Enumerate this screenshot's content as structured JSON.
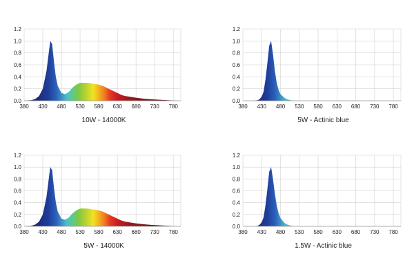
{
  "chart_data": [
    {
      "type": "area",
      "title": "10W - 14000K",
      "xlabel": "",
      "ylabel": "",
      "xlim": [
        380,
        800
      ],
      "ylim": [
        0,
        1.2
      ],
      "x_ticks": [
        "380",
        "430",
        "480",
        "530",
        "580",
        "630",
        "680",
        "730",
        "780"
      ],
      "y_ticks": [
        "0.0",
        "0.2",
        "0.4",
        "0.6",
        "0.8",
        "1.0",
        "1.2"
      ],
      "grid": true,
      "series": [
        {
          "x": [
            380,
            400,
            410,
            420,
            430,
            440,
            445,
            450,
            455,
            460,
            465,
            470,
            480,
            490,
            500,
            510,
            520,
            530,
            540,
            550,
            560,
            570,
            580,
            590,
            600,
            610,
            620,
            630,
            640,
            650,
            660,
            670,
            680,
            700,
            720,
            740,
            760,
            780,
            790
          ],
          "y": [
            0,
            0.01,
            0.03,
            0.08,
            0.2,
            0.5,
            0.75,
            1.0,
            0.95,
            0.65,
            0.4,
            0.25,
            0.13,
            0.11,
            0.15,
            0.22,
            0.27,
            0.3,
            0.3,
            0.3,
            0.29,
            0.28,
            0.27,
            0.25,
            0.22,
            0.19,
            0.16,
            0.13,
            0.1,
            0.08,
            0.07,
            0.06,
            0.05,
            0.035,
            0.025,
            0.017,
            0.01,
            0.005,
            0
          ]
        }
      ]
    },
    {
      "type": "area",
      "title": "5W - Actinic blue",
      "xlabel": "",
      "ylabel": "",
      "xlim": [
        380,
        800
      ],
      "ylim": [
        0,
        1.2
      ],
      "x_ticks": [
        "380",
        "430",
        "480",
        "530",
        "580",
        "630",
        "680",
        "730",
        "780"
      ],
      "y_ticks": [
        "0.0",
        "0.2",
        "0.4",
        "0.6",
        "0.8",
        "1.0",
        "1.2"
      ],
      "grid": true,
      "series": [
        {
          "x": [
            410,
            420,
            425,
            430,
            435,
            440,
            445,
            450,
            455,
            460,
            465,
            470,
            475,
            480,
            490,
            500,
            510,
            520
          ],
          "y": [
            0,
            0.01,
            0.03,
            0.07,
            0.15,
            0.35,
            0.62,
            0.92,
            1.0,
            0.78,
            0.5,
            0.3,
            0.18,
            0.11,
            0.05,
            0.02,
            0.005,
            0
          ]
        }
      ]
    },
    {
      "type": "area",
      "title": "5W - 14000K",
      "xlabel": "",
      "ylabel": "",
      "xlim": [
        380,
        800
      ],
      "ylim": [
        0,
        1.2
      ],
      "x_ticks": [
        "380",
        "430",
        "480",
        "530",
        "580",
        "630",
        "680",
        "730",
        "780"
      ],
      "y_ticks": [
        "0.0",
        "0.2",
        "0.4",
        "0.6",
        "0.8",
        "1.0",
        "1.2"
      ],
      "grid": true,
      "series": [
        {
          "x": [
            380,
            400,
            410,
            420,
            430,
            440,
            445,
            450,
            455,
            460,
            465,
            470,
            480,
            490,
            500,
            510,
            520,
            530,
            540,
            550,
            560,
            570,
            580,
            590,
            600,
            610,
            620,
            630,
            640,
            650,
            660,
            670,
            680,
            700,
            720,
            740,
            760,
            780,
            790
          ],
          "y": [
            0,
            0.01,
            0.03,
            0.08,
            0.2,
            0.5,
            0.75,
            1.0,
            0.95,
            0.65,
            0.4,
            0.25,
            0.13,
            0.11,
            0.15,
            0.22,
            0.27,
            0.3,
            0.3,
            0.3,
            0.29,
            0.28,
            0.27,
            0.25,
            0.22,
            0.19,
            0.16,
            0.13,
            0.1,
            0.08,
            0.07,
            0.06,
            0.05,
            0.035,
            0.025,
            0.017,
            0.01,
            0.005,
            0
          ]
        }
      ]
    },
    {
      "type": "area",
      "title": "1.5W - Actinic blue",
      "xlabel": "",
      "ylabel": "",
      "xlim": [
        380,
        800
      ],
      "ylim": [
        0,
        1.2
      ],
      "x_ticks": [
        "380",
        "430",
        "480",
        "530",
        "580",
        "630",
        "680",
        "730",
        "780"
      ],
      "y_ticks": [
        "0.0",
        "0.2",
        "0.4",
        "0.6",
        "0.8",
        "1.0",
        "1.2"
      ],
      "grid": true,
      "series": [
        {
          "x": [
            410,
            420,
            425,
            430,
            435,
            440,
            445,
            450,
            455,
            460,
            465,
            470,
            475,
            480,
            490,
            500,
            510,
            520
          ],
          "y": [
            0,
            0.01,
            0.03,
            0.07,
            0.15,
            0.35,
            0.62,
            0.92,
            1.0,
            0.8,
            0.55,
            0.35,
            0.22,
            0.14,
            0.06,
            0.025,
            0.008,
            0
          ]
        }
      ]
    }
  ]
}
